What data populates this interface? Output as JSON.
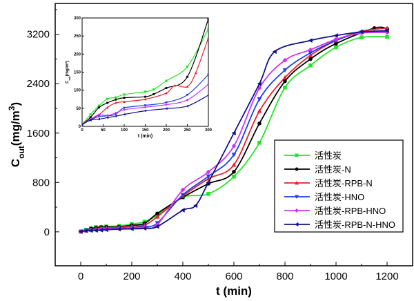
{
  "chart_data": [
    {
      "type": "line",
      "xlabel": "t (min)",
      "ylabel": {
        "main": "C",
        "sub": "out",
        "unit": "(mg/m",
        "sup": "3",
        "close": ")"
      },
      "xlim": [
        -100,
        1300
      ],
      "ylim": [
        -550,
        3700
      ],
      "xticks": [
        0,
        200,
        400,
        600,
        800,
        1000,
        1200
      ],
      "yticks": [
        0,
        800,
        1600,
        2400,
        3200
      ],
      "grid": false,
      "legend": "right",
      "series": [
        {
          "name": "活性炭",
          "color": "#22e622",
          "marker": "square",
          "x": [
            0,
            20,
            40,
            60,
            80,
            100,
            150,
            200,
            250,
            300,
            400,
            500,
            600,
            700,
            800,
            900,
            1000,
            1100,
            1200
          ],
          "y": [
            5,
            33,
            57,
            76,
            80,
            88,
            96,
            126,
            165,
            270,
            560,
            615,
            895,
            1443,
            2338,
            2696,
            2990,
            3150,
            3160
          ]
        },
        {
          "name": "活性炭-N",
          "color": "#000000",
          "marker": "circle",
          "x": [
            0,
            20,
            40,
            60,
            80,
            100,
            150,
            200,
            250,
            300,
            400,
            500,
            600,
            700,
            800,
            900,
            1000,
            1150,
            1200
          ],
          "y": [
            5,
            25,
            52,
            65,
            74,
            79,
            82,
            106,
            137,
            297,
            560,
            780,
            973,
            1756,
            2440,
            2800,
            3050,
            3300,
            3290
          ]
        },
        {
          "name": "活性炭-RPB-N",
          "color": "#e8202a",
          "marker": "triangle-up",
          "x": [
            0,
            20,
            40,
            60,
            80,
            100,
            150,
            200,
            250,
            300,
            400,
            500,
            600,
            700,
            800,
            900,
            1000,
            1100,
            1200
          ],
          "y": [
            5,
            20,
            32,
            52,
            65,
            68,
            75,
            92,
            110,
            245,
            580,
            860,
            1085,
            1957,
            2500,
            2860,
            3100,
            3250,
            3300
          ]
        },
        {
          "name": "活性炭-HNO",
          "color": "#1a3ee8",
          "marker": "triangle-down",
          "x": [
            0,
            20,
            40,
            60,
            80,
            100,
            150,
            200,
            250,
            300,
            400,
            500,
            600,
            700,
            800,
            900,
            1000,
            1100,
            1200
          ],
          "y": [
            5,
            18,
            27,
            29,
            33,
            51,
            58,
            66,
            87,
            143,
            600,
            900,
            1250,
            2150,
            2620,
            2900,
            3100,
            3230,
            3250
          ]
        },
        {
          "name": "活性炭-RPB-HNO",
          "color": "#cc33ee",
          "marker": "diamond",
          "x": [
            0,
            20,
            40,
            60,
            80,
            100,
            150,
            200,
            250,
            300,
            400,
            500,
            600,
            700,
            800,
            900,
            1000,
            1100,
            1200
          ],
          "y": [
            5,
            20,
            32,
            30,
            37,
            46,
            53,
            60,
            73,
            116,
            680,
            970,
            1390,
            2330,
            2780,
            2950,
            3120,
            3220,
            3230
          ]
        },
        {
          "name": "活性炭-RPB-N-HNO",
          "color": "#10108a",
          "marker": "triangle-left",
          "x": [
            0,
            20,
            40,
            60,
            80,
            100,
            150,
            200,
            250,
            300,
            400,
            450,
            500,
            600,
            700,
            760,
            900,
            1000,
            1100,
            1200
          ],
          "y": [
            5,
            17,
            20,
            24,
            28,
            33,
            43,
            49,
            56,
            86,
            350,
            425,
            800,
            1600,
            2400,
            2920,
            3100,
            3180,
            3240,
            3260
          ]
        }
      ]
    },
    {
      "type": "line",
      "inset": true,
      "xlabel": "t (min)",
      "ylabel": {
        "main": "C",
        "sub": "out",
        "unit": "(mg/m",
        "sup": "3",
        "close": ")"
      },
      "xlim": [
        0,
        300
      ],
      "ylim": [
        0,
        300
      ],
      "xticks": [
        0,
        50,
        100,
        150,
        200,
        250,
        300
      ],
      "yticks": [
        0,
        50,
        100,
        150,
        200,
        250,
        300
      ],
      "grid": false,
      "series": [
        {
          "color": "#22e622",
          "marker": "square",
          "x": [
            0,
            20,
            40,
            60,
            80,
            100,
            150,
            170,
            200,
            250,
            300
          ],
          "y": [
            5,
            33,
            57,
            76,
            80,
            88,
            96,
            102,
            126,
            165,
            270
          ]
        },
        {
          "color": "#000000",
          "marker": "circle",
          "x": [
            0,
            20,
            40,
            60,
            80,
            100,
            150,
            170,
            200,
            250,
            300
          ],
          "y": [
            5,
            25,
            52,
            65,
            74,
            79,
            82,
            89,
            106,
            137,
            297
          ]
        },
        {
          "color": "#e8202a",
          "marker": "triangle-up",
          "x": [
            0,
            20,
            40,
            60,
            80,
            100,
            150,
            200,
            220,
            250,
            270,
            300
          ],
          "y": [
            5,
            20,
            32,
            52,
            65,
            68,
            75,
            92,
            113,
            110,
            148,
            245
          ]
        },
        {
          "color": "#1a3ee8",
          "marker": "triangle-down",
          "x": [
            0,
            20,
            40,
            60,
            80,
            100,
            150,
            200,
            250,
            300
          ],
          "y": [
            5,
            18,
            27,
            29,
            33,
            51,
            58,
            66,
            87,
            143
          ]
        },
        {
          "color": "#cc33ee",
          "marker": "diamond",
          "x": [
            0,
            20,
            40,
            60,
            80,
            100,
            150,
            200,
            250,
            300
          ],
          "y": [
            5,
            20,
            32,
            30,
            37,
            46,
            53,
            60,
            73,
            116
          ]
        },
        {
          "color": "#10108a",
          "marker": "triangle-left",
          "x": [
            0,
            20,
            40,
            60,
            80,
            100,
            150,
            200,
            250,
            300
          ],
          "y": [
            5,
            17,
            20,
            24,
            28,
            33,
            43,
            49,
            56,
            86
          ]
        }
      ]
    }
  ]
}
